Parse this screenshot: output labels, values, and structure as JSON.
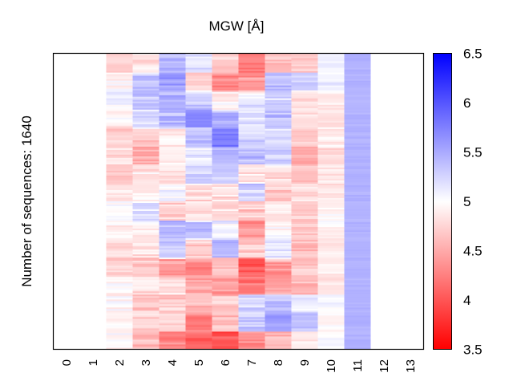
{
  "chart_data": {
    "type": "heatmap",
    "title": "MGW [Å]",
    "xlabel": "",
    "ylabel": "Number of sequences: 1640",
    "n_sequences": 1640,
    "x_tick_labels": [
      "0",
      "1",
      "2",
      "3",
      "4",
      "5",
      "6",
      "7",
      "8",
      "9",
      "10",
      "11",
      "12",
      "13"
    ],
    "colorbar": {
      "range": [
        3.5,
        6.5
      ],
      "center": 5.0,
      "colormap": "bwr",
      "low_color": "#ff0000",
      "mid_color": "#ffffff",
      "high_color": "#0000ff",
      "tick_labels": [
        "6.5",
        "6",
        "5.5",
        "5",
        "4.5",
        "4",
        "3.5"
      ],
      "tick_values": [
        6.5,
        6.0,
        5.5,
        5.0,
        4.5,
        4.0,
        3.5
      ]
    },
    "empty_columns": [
      0,
      1,
      12,
      13
    ],
    "band_count": 16,
    "column_band_means": {
      "2": [
        4.75,
        4.95,
        5.1,
        4.95,
        4.7,
        4.8,
        4.7,
        4.85,
        4.95,
        4.9,
        4.8,
        4.75,
        4.95,
        4.95,
        4.9,
        4.95
      ],
      "3": [
        4.85,
        5.4,
        5.35,
        5.2,
        4.7,
        4.5,
        4.85,
        4.85,
        5.2,
        4.85,
        4.8,
        4.7,
        4.8,
        4.7,
        4.75,
        4.6
      ],
      "4": [
        5.4,
        5.6,
        5.45,
        5.4,
        4.9,
        4.95,
        4.85,
        5.1,
        4.7,
        5.4,
        5.3,
        4.4,
        4.9,
        4.7,
        4.7,
        4.3
      ],
      "5": [
        5.2,
        4.7,
        5.3,
        5.75,
        5.4,
        5.1,
        5.2,
        4.8,
        4.8,
        5.35,
        4.7,
        4.3,
        4.5,
        4.6,
        4.3,
        4.1
      ],
      "6": [
        4.7,
        4.3,
        4.9,
        5.5,
        5.75,
        5.4,
        5.3,
        4.8,
        4.85,
        5.1,
        5.4,
        4.6,
        4.4,
        4.7,
        4.6,
        4.0
      ],
      "7": [
        4.3,
        4.4,
        5.2,
        5.25,
        5.3,
        5.4,
        4.8,
        5.3,
        4.7,
        4.4,
        4.7,
        4.0,
        4.2,
        5.2,
        5.3,
        4.3
      ],
      "8": [
        4.6,
        5.4,
        5.2,
        5.4,
        5.2,
        5.3,
        4.8,
        4.7,
        4.8,
        5.0,
        5.2,
        4.4,
        4.5,
        5.35,
        5.5,
        4.6
      ],
      "9": [
        4.7,
        5.3,
        4.8,
        4.8,
        4.7,
        4.5,
        4.6,
        4.8,
        4.7,
        4.7,
        4.6,
        4.7,
        4.6,
        5.1,
        5.4,
        4.9
      ],
      "10": [
        5.1,
        5.1,
        4.9,
        4.8,
        4.9,
        4.75,
        4.85,
        4.85,
        4.95,
        4.95,
        4.9,
        4.9,
        4.85,
        5.05,
        4.95,
        5.0
      ],
      "11": [
        5.45,
        5.45,
        5.45,
        5.45,
        5.45,
        5.45,
        5.45,
        5.45,
        5.45,
        5.45,
        5.45,
        5.45,
        5.45,
        5.45,
        5.45,
        5.45
      ]
    },
    "column_row_spread": {
      "2": 0.25,
      "3": 0.3,
      "4": 0.3,
      "5": 0.3,
      "6": 0.3,
      "7": 0.35,
      "8": 0.3,
      "9": 0.25,
      "10": 0.2,
      "11": 0.08
    },
    "grid": false,
    "legend": "colorbar-right"
  }
}
